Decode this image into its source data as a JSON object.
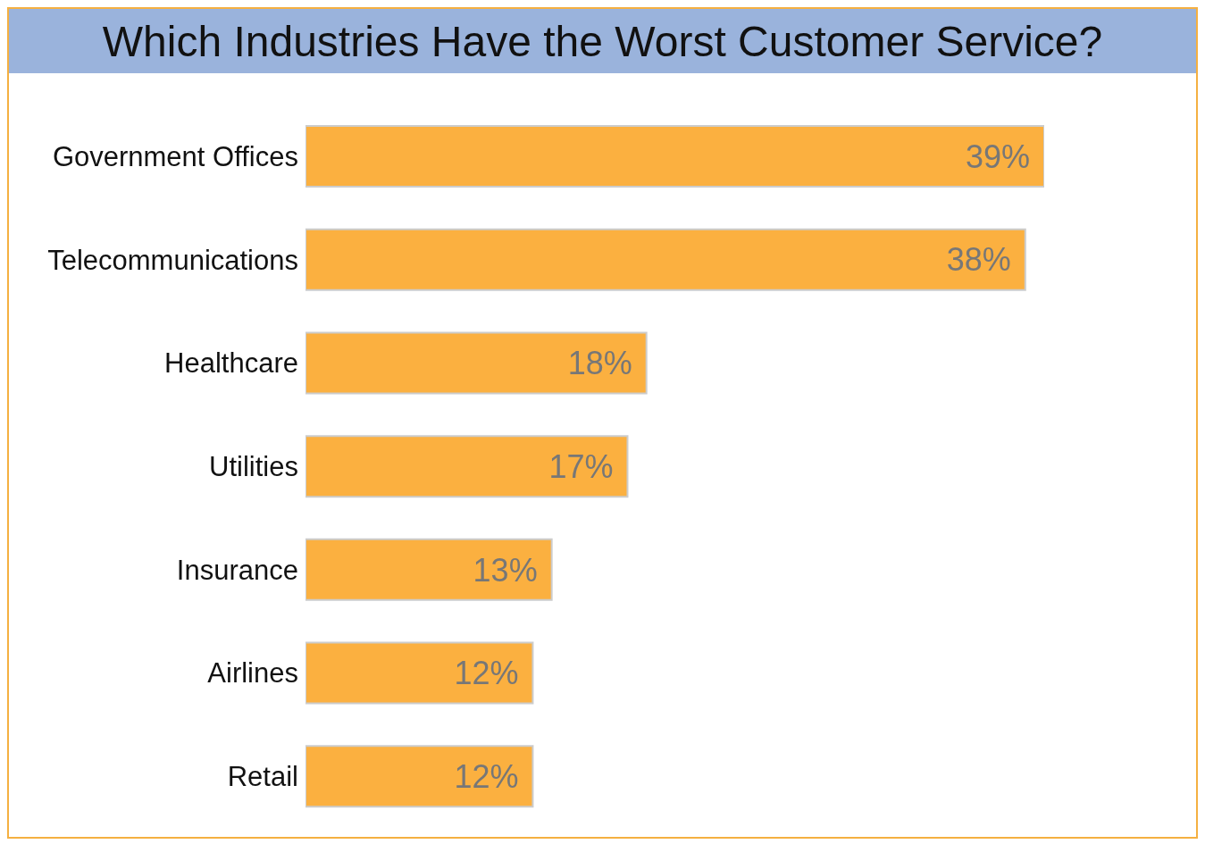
{
  "chart_data": {
    "type": "bar",
    "orientation": "horizontal",
    "title": "Which Industries Have the Worst Customer Service?",
    "categories": [
      "Government Offices",
      "Telecommunications",
      "Healthcare",
      "Utilities",
      "Insurance",
      "Airlines",
      "Retail"
    ],
    "values": [
      39,
      38,
      18,
      17,
      13,
      12,
      12
    ],
    "value_labels": [
      "39%",
      "38%",
      "18%",
      "17%",
      "13%",
      "12%",
      "12%"
    ],
    "color": "#fbb040",
    "tick_labels": "y"
  }
}
